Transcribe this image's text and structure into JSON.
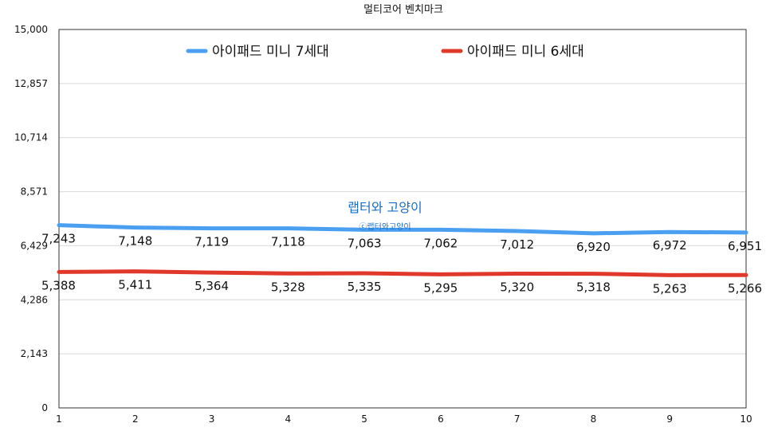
{
  "chart_data": {
    "type": "line",
    "title": "멀티코어 벤치마크",
    "x": [
      1,
      2,
      3,
      4,
      5,
      6,
      7,
      8,
      9,
      10
    ],
    "series": [
      {
        "name": "아이패드 미니 7세대",
        "color": "#4a9ff0",
        "values": [
          7243,
          7148,
          7119,
          7118,
          7063,
          7062,
          7012,
          6920,
          6972,
          6951
        ]
      },
      {
        "name": "아이패드 미니 6세대",
        "color": "#e0392b",
        "values": [
          5388,
          5411,
          5364,
          5328,
          5335,
          5295,
          5320,
          5318,
          5263,
          5266
        ]
      }
    ],
    "ylim": [
      0,
      15000
    ],
    "yticks": [
      "0",
      "2,143",
      "4,286",
      "6,429",
      "8,571",
      "10,714",
      "12,857",
      "15,000"
    ],
    "xticks": [
      "1",
      "2",
      "3",
      "4",
      "5",
      "6",
      "7",
      "8",
      "9",
      "10"
    ],
    "data_labels": [
      [
        "7,243",
        "7,148",
        "7,119",
        "7,118",
        "7,063",
        "7,062",
        "7,012",
        "6,920",
        "6,972",
        "6,951"
      ],
      [
        "5,388",
        "5,411",
        "5,364",
        "5,328",
        "5,335",
        "5,295",
        "5,320",
        "5,318",
        "5,263",
        "5,266"
      ]
    ],
    "grid": true,
    "legend_position": "top",
    "watermark": {
      "main": "랩터와 고양이",
      "sub": "ⓒ랩터와고양이"
    }
  }
}
